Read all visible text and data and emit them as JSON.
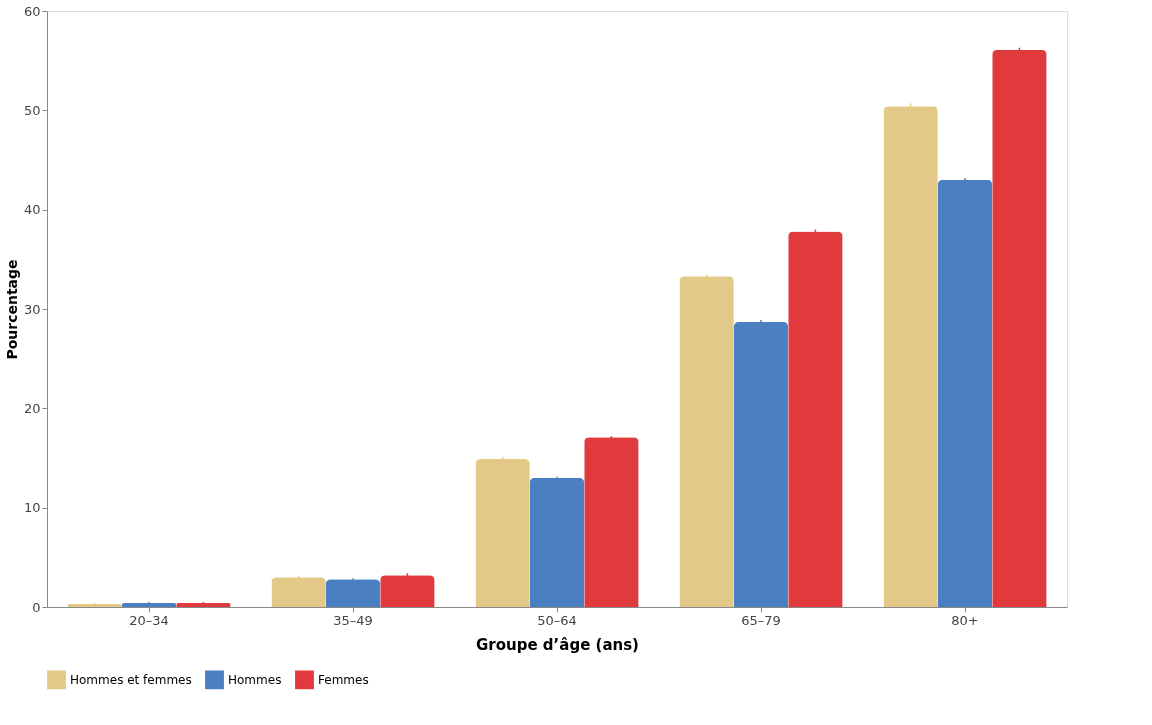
{
  "chart_data": {
    "type": "bar",
    "xlabel": "Groupe d’âge (ans)",
    "ylabel": "Pourcentage",
    "categories": [
      "20–34",
      "35–49",
      "50–64",
      "65–79",
      "80+"
    ],
    "series": [
      {
        "name": "Hommes et femmes",
        "color": "#e3c987",
        "values": [
          0.3,
          3.0,
          14.9,
          33.3,
          50.4
        ],
        "errors": [
          0.1,
          0.1,
          0.2,
          0.2,
          0.3
        ]
      },
      {
        "name": "Hommes",
        "color": "#4a7fc1",
        "values": [
          0.4,
          2.8,
          13.0,
          28.7,
          43.0
        ],
        "errors": [
          0.1,
          0.1,
          0.1,
          0.2,
          0.2
        ]
      },
      {
        "name": "Femmes",
        "color": "#e03a3c",
        "values": [
          0.4,
          3.2,
          17.1,
          37.8,
          56.1
        ],
        "errors": [
          0.1,
          0.2,
          0.1,
          0.2,
          0.2
        ]
      }
    ],
    "ylim": [
      0,
      60
    ],
    "yticks": [
      0,
      10,
      20,
      30,
      40,
      50,
      60
    ],
    "legend": "bottom"
  }
}
